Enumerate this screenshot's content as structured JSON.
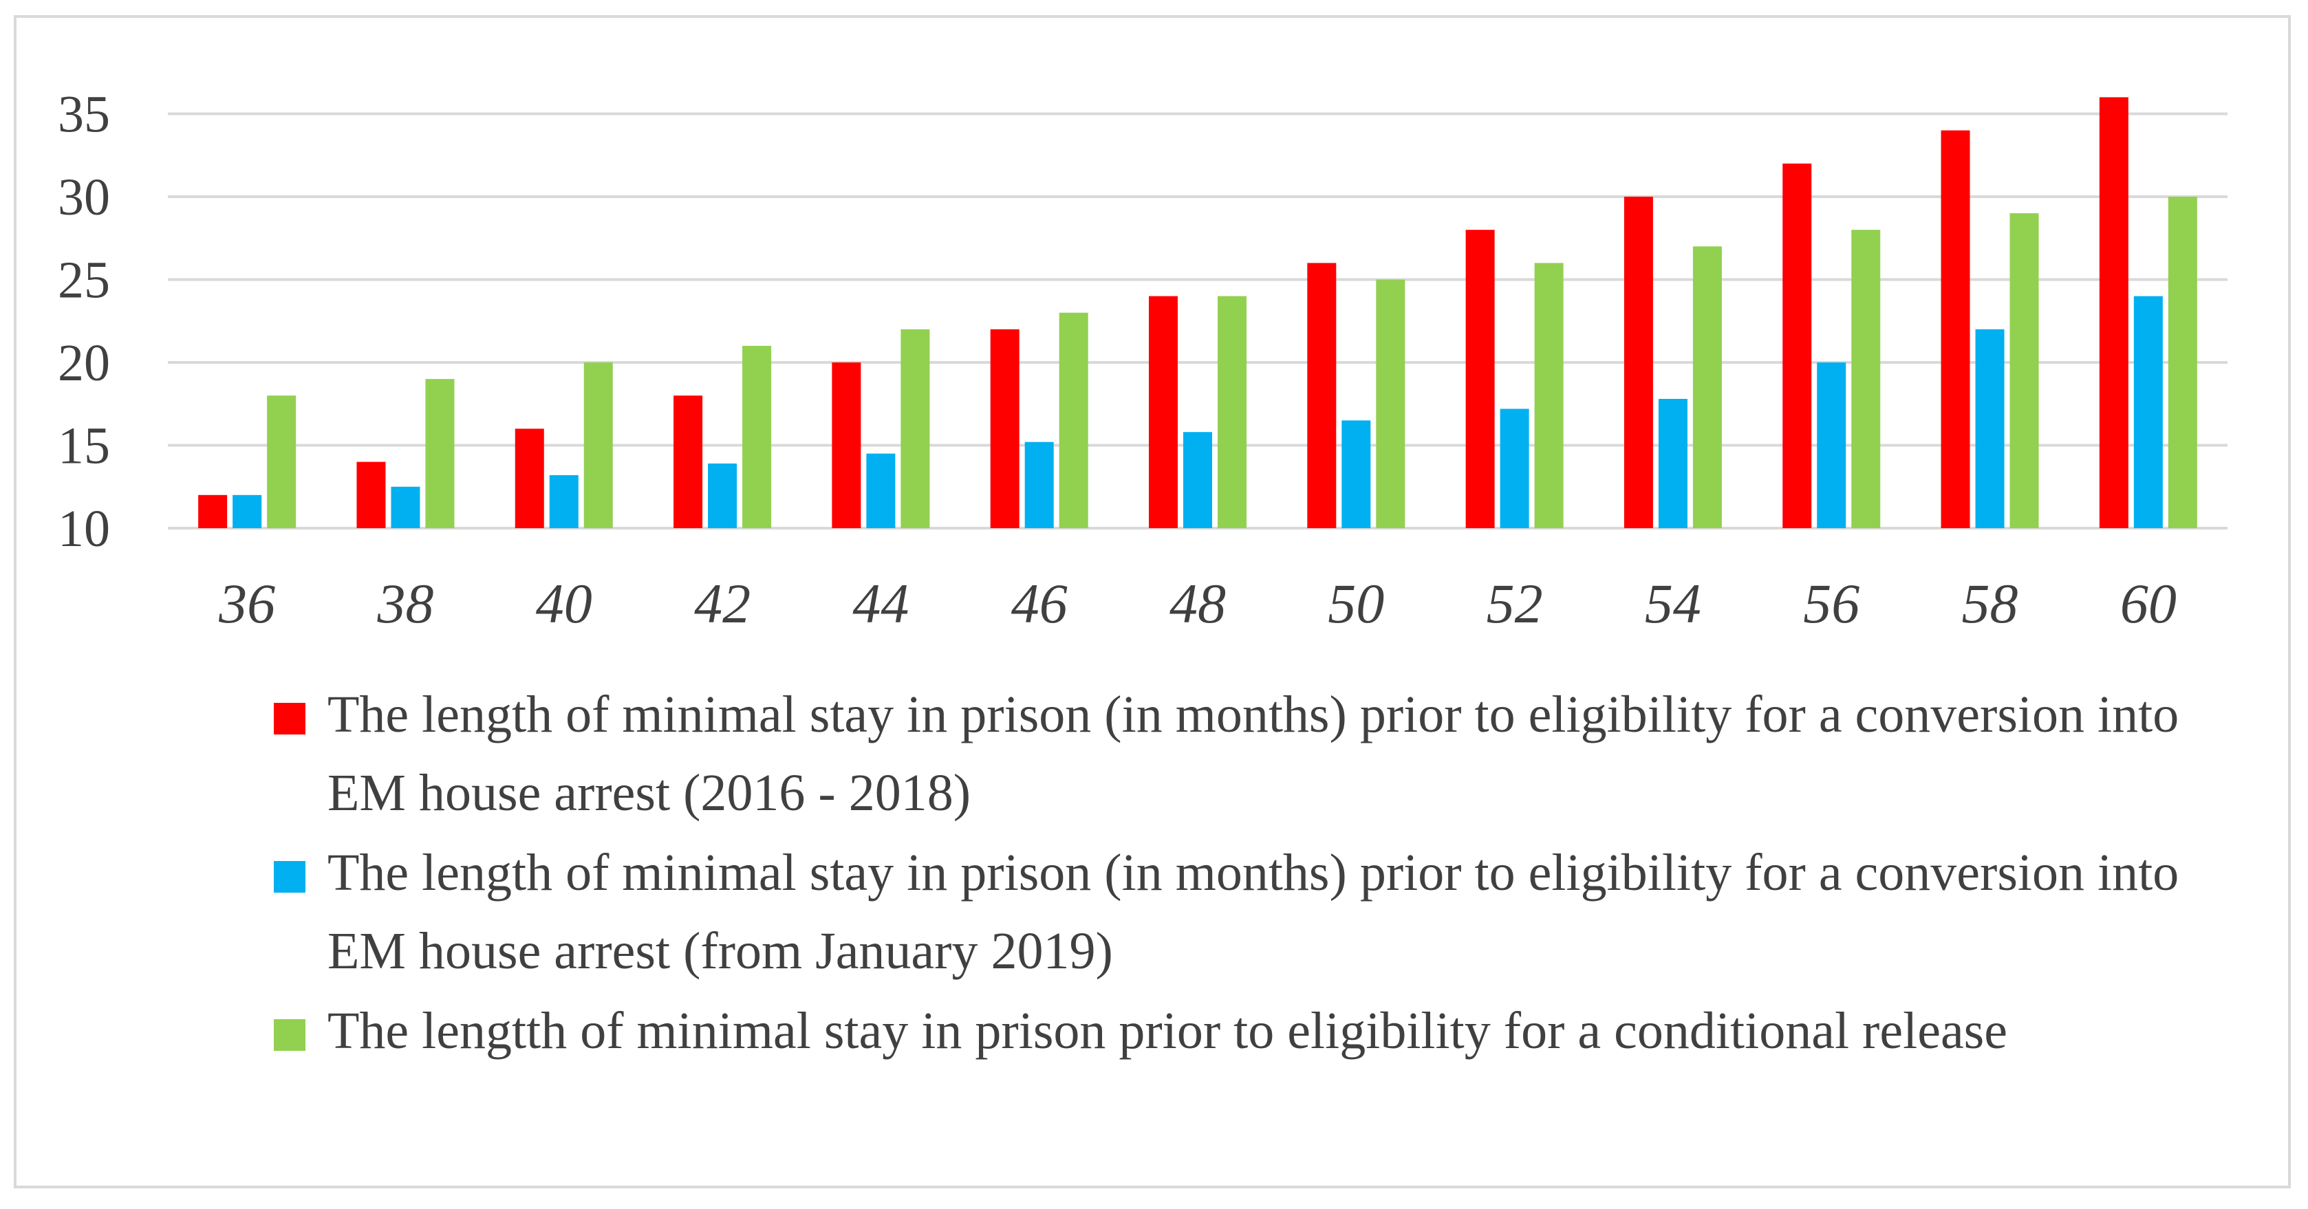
{
  "chart_data": {
    "type": "bar",
    "categories": [
      "36",
      "38",
      "40",
      "42",
      "44",
      "46",
      "48",
      "50",
      "52",
      "54",
      "56",
      "58",
      "60"
    ],
    "series": [
      {
        "name": "The length of minimal stay in prison (in months) prior to eligibility for a conversion into EM house arrest (2016 - 2018)",
        "color": "#ff0000",
        "values": [
          12,
          14,
          16,
          18,
          20,
          22,
          24,
          26,
          28,
          30,
          32,
          34,
          36
        ]
      },
      {
        "name": "The length of minimal stay in prison (in months) prior to eligibility for a conversion into EM house arrest (from January 2019)",
        "color": "#00b0f0",
        "values": [
          12,
          12.5,
          13.2,
          13.9,
          14.5,
          15.2,
          15.8,
          16.5,
          17.2,
          17.8,
          20,
          22,
          24
        ]
      },
      {
        "name": "The lengtth of minimal stay in prison prior to eligibility for a conditional release",
        "color": "#92d050",
        "values": [
          18,
          19,
          20,
          21,
          22,
          23,
          24,
          25,
          26,
          27,
          28,
          29,
          30
        ]
      }
    ],
    "yticks": [
      "10",
      "15",
      "20",
      "25",
      "30",
      "35"
    ],
    "ylim": [
      10,
      37
    ],
    "grid": true,
    "legend_position": "bottom"
  }
}
